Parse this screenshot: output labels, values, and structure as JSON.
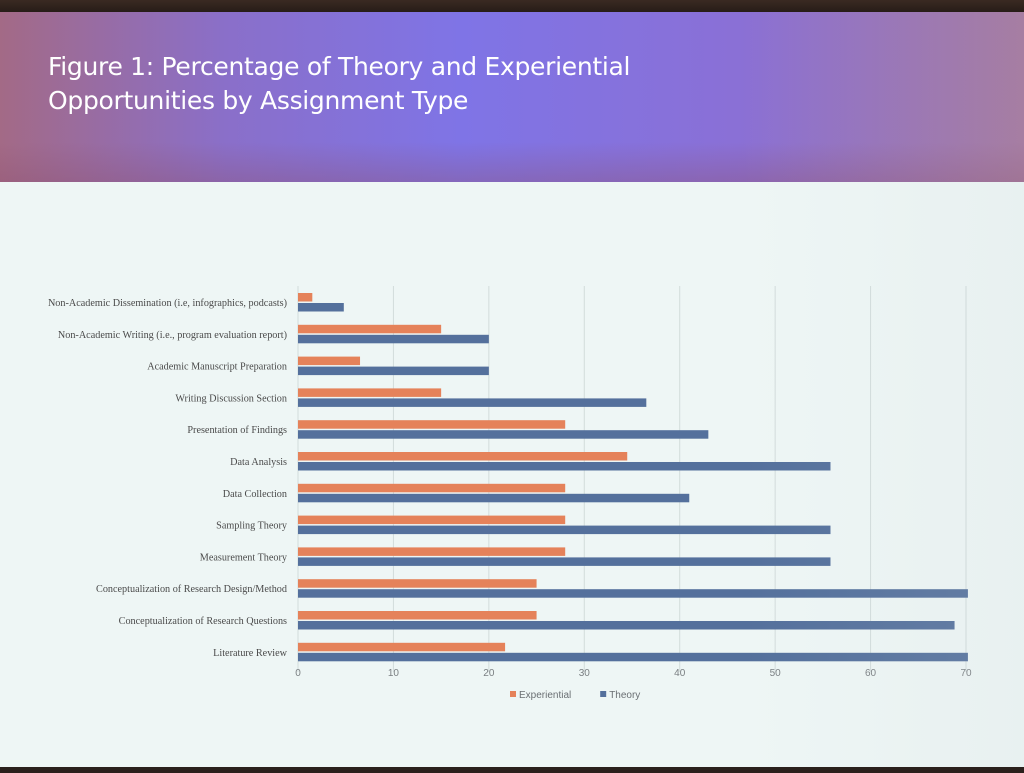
{
  "slide": {
    "title": "Figure 1: Percentage of Theory and Experiential Opportunities by Assignment Type"
  },
  "colors": {
    "experiential": "#e5825a",
    "theory": "#54709c",
    "gridline": "#d2dcdb",
    "text": "#4a4a4a",
    "header_gradient": [
      "#a36a86",
      "#7f74e6",
      "#a06f99"
    ]
  },
  "chart_data": {
    "type": "bar",
    "orientation": "horizontal",
    "title": "Figure 1: Percentage of Theory and Experiential Opportunities by Assignment Type",
    "xlabel": "",
    "ylabel": "",
    "xlim": [
      0,
      70
    ],
    "x_ticks": [
      0,
      10,
      20,
      30,
      40,
      50,
      60,
      70
    ],
    "grid": "vertical",
    "legend": "bottom-center",
    "categories": [
      "Non-Academic Dissemination (i.e, infographics, podcasts)",
      "Non-Academic Writing  (i.e., program evaluation report)",
      "Academic Manuscript Preparation",
      "Writing Discussion Section",
      "Presentation of Findings",
      "Data Analysis",
      "Data Collection",
      "Sampling Theory",
      "Measurement Theory",
      "Conceptualization of Research Design/Method",
      "Conceptualization of Research Questions",
      "Literature Review"
    ],
    "series": [
      {
        "name": "Experiential",
        "color": "#e5825a",
        "values": [
          1.5,
          15,
          6.5,
          15,
          28,
          34.5,
          28,
          28,
          28,
          25,
          25,
          21.7
        ]
      },
      {
        "name": "Theory",
        "color": "#54709c",
        "values": [
          4.8,
          20,
          20,
          36.5,
          43,
          55.8,
          41,
          55.8,
          55.8,
          70.2,
          68.8,
          70.2
        ]
      }
    ]
  }
}
